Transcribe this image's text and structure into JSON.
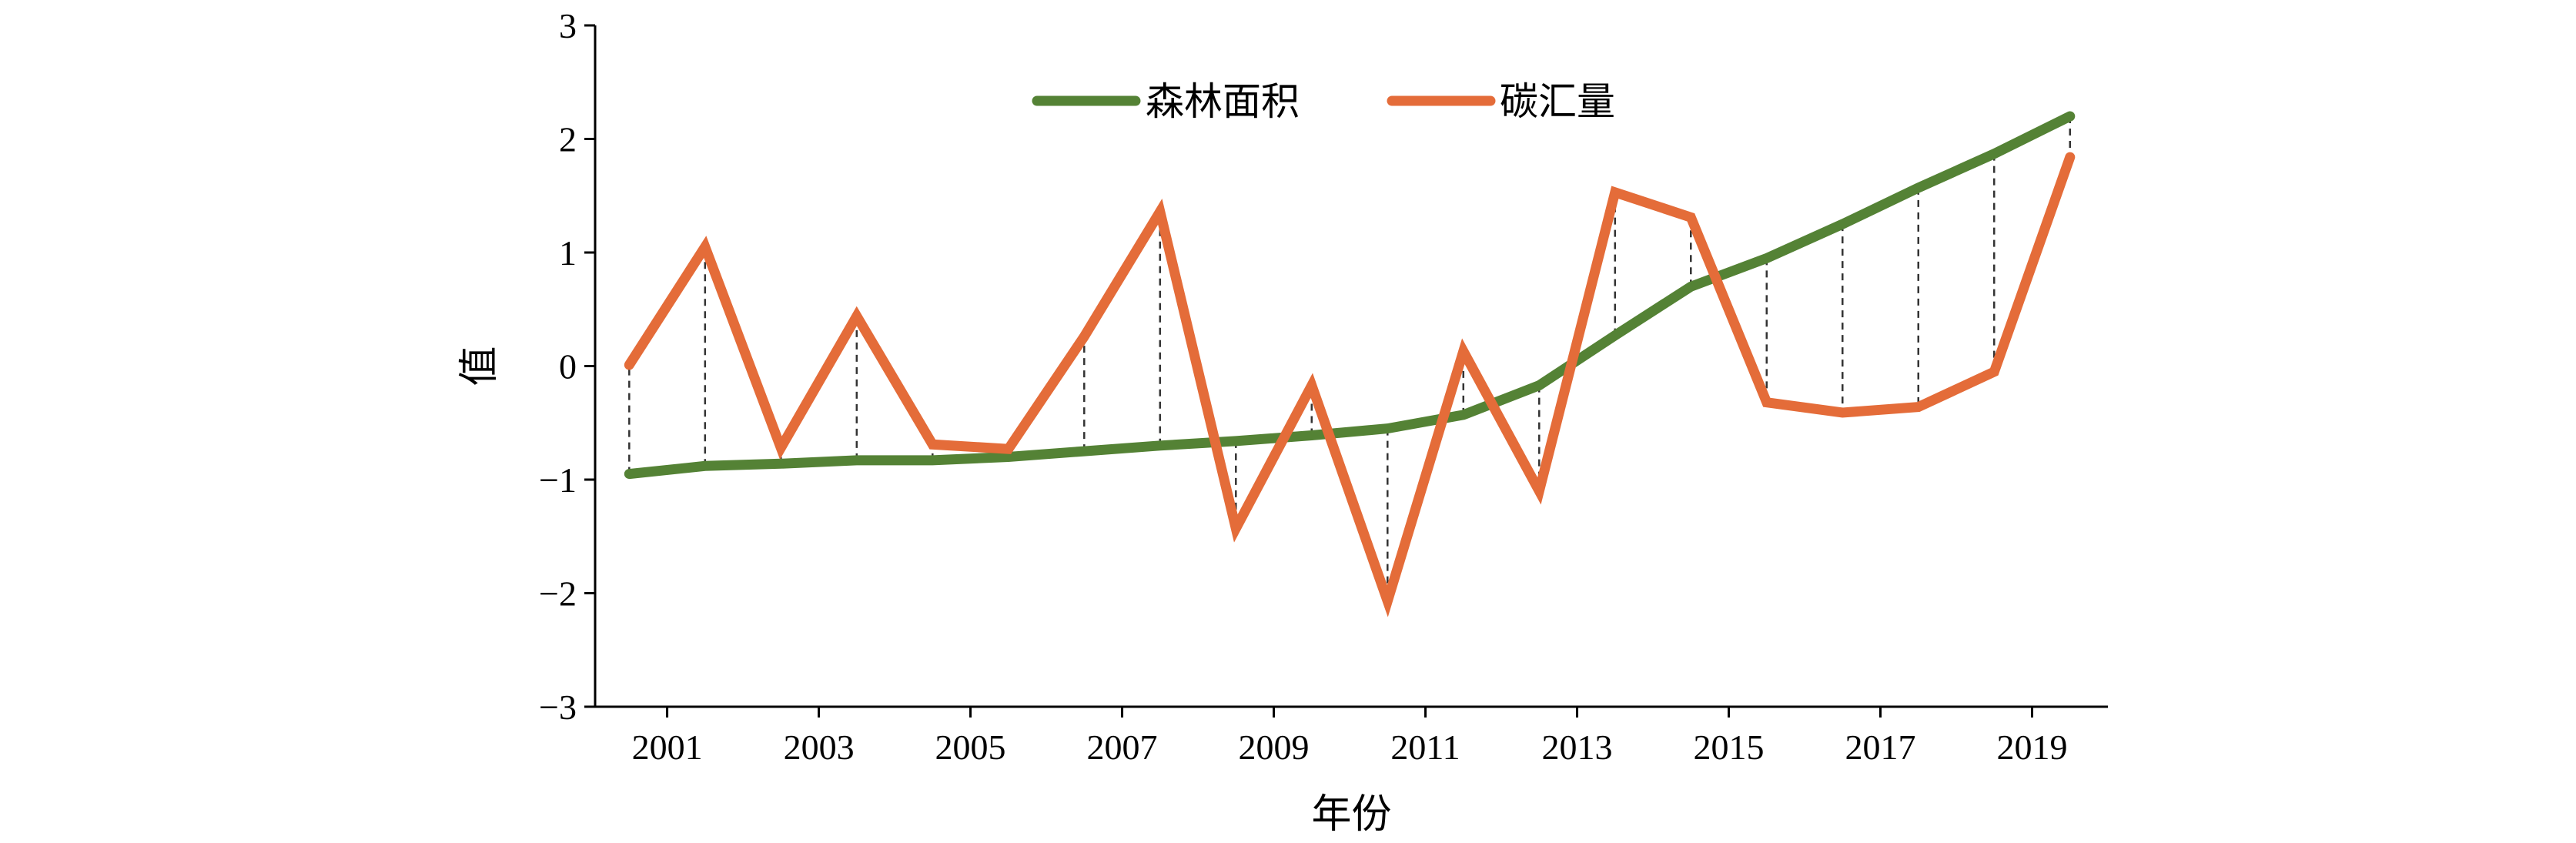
{
  "chart_data": {
    "type": "line",
    "title": "",
    "xlabel": "年份",
    "ylabel": "值",
    "x": [
      2000.5,
      2001.5,
      2002.5,
      2003.5,
      2004.5,
      2005.5,
      2006.5,
      2007.5,
      2008.5,
      2009.5,
      2010.5,
      2011.5,
      2012.5,
      2013.5,
      2014.5,
      2015.5,
      2016.5,
      2017.5,
      2018.5,
      2019.5
    ],
    "xlim": [
      2000.05,
      2020.0
    ],
    "ylim": [
      -3,
      3
    ],
    "xticks": [
      2001,
      2003,
      2005,
      2007,
      2009,
      2011,
      2013,
      2015,
      2017,
      2019
    ],
    "xtick_labels": [
      "2001",
      "2003",
      "2005",
      "2007",
      "2009",
      "2011",
      "2013",
      "2015",
      "2017",
      "2019"
    ],
    "yticks": [
      -3,
      -2,
      -1,
      0,
      1,
      2,
      3
    ],
    "ytick_labels": [
      "−3",
      "−2",
      "−1",
      "0",
      "1",
      "2",
      "3"
    ],
    "grid": false,
    "legend_position": "top-center",
    "series": [
      {
        "name": "森林面积",
        "color": "#548235",
        "values": [
          -0.95,
          -0.88,
          -0.86,
          -0.83,
          -0.83,
          -0.8,
          -0.75,
          -0.7,
          -0.66,
          -0.61,
          -0.55,
          -0.43,
          -0.17,
          0.27,
          0.7,
          0.95,
          1.25,
          1.57,
          1.87,
          2.2
        ]
      },
      {
        "name": "碳汇量",
        "color": "#E46C39",
        "values": [
          0.01,
          1.05,
          -0.72,
          0.44,
          -0.69,
          -0.73,
          0.26,
          1.36,
          -1.43,
          -0.17,
          -2.07,
          0.13,
          -1.1,
          1.53,
          1.31,
          -0.32,
          -0.41,
          -0.36,
          -0.05,
          1.84
        ]
      }
    ],
    "annotations": "vertical dashed connectors between the two series at each data point"
  }
}
